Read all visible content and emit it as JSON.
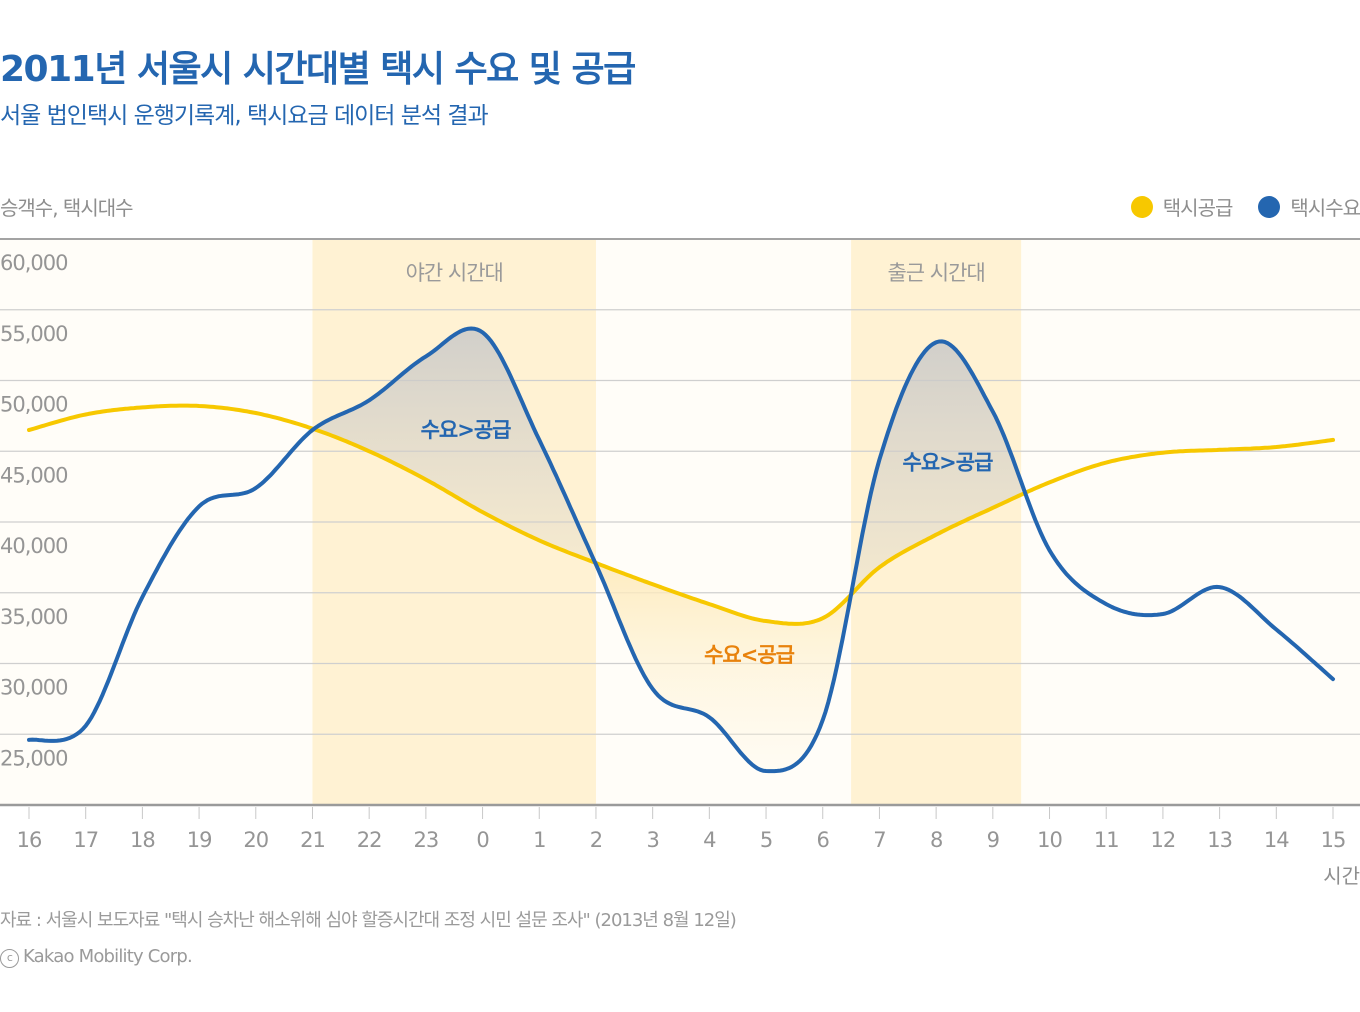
{
  "header": {
    "title": "2011년 서울시 시간대별 택시 수요 및 공급",
    "subtitle": "서울 법인택시 운행기록계, 택시요금 데이터 분석 결과"
  },
  "footer": {
    "source": "자료 : 서울시 보도자료 \"택시 승차난 해소위해 심야 할증시간대 조정 시민 설문 조사\" (2013년 8월 12일)",
    "copyright_symbol": "c",
    "copyright": "Kakao Mobility Corp."
  },
  "colors": {
    "title": "#2466b0",
    "supply": "#f7c800",
    "demand": "#2466b0",
    "highlight_band": "#fff2d3",
    "plot_bg": "#fffdf8",
    "annotation_demand_gt": "#2466b0",
    "annotation_demand_lt": "#e8820c"
  },
  "chart_data": {
    "type": "line",
    "title": "2011년 서울시 시간대별 택시 수요 및 공급",
    "subtitle": "서울 법인택시 운행기록계, 택시요금 데이터 분석 결과",
    "ylabel": "승객수, 택시대수",
    "xlabel": "시간",
    "ylim": [
      20000,
      60000
    ],
    "yticks": [
      60000,
      55000,
      50000,
      45000,
      40000,
      35000,
      30000,
      25000
    ],
    "ytick_labels": [
      "60,000",
      "55,000",
      "50,000",
      "45,000",
      "40,000",
      "35,000",
      "30,000",
      "25,000"
    ],
    "categories": [
      "16",
      "17",
      "18",
      "19",
      "20",
      "21",
      "22",
      "23",
      "0",
      "1",
      "2",
      "3",
      "4",
      "5",
      "6",
      "7",
      "8",
      "9",
      "10",
      "11",
      "12",
      "13",
      "14",
      "15"
    ],
    "grid": true,
    "legend_position": "top-right",
    "series": [
      {
        "name": "택시공급",
        "color": "#f7c800",
        "values": [
          46500,
          47600,
          48100,
          48200,
          47700,
          46600,
          45000,
          43000,
          40700,
          38700,
          37100,
          35600,
          34200,
          33000,
          33200,
          36800,
          39100,
          41000,
          42800,
          44200,
          44900,
          45100,
          45300,
          45800
        ]
      },
      {
        "name": "택시수요",
        "color": "#2466b0",
        "values": [
          24600,
          25600,
          34700,
          41100,
          42400,
          46500,
          48600,
          51700,
          53400,
          45800,
          37000,
          28200,
          26200,
          22400,
          26000,
          44400,
          52700,
          47800,
          38000,
          34200,
          33500,
          35400,
          32400,
          28900
        ]
      }
    ],
    "bands": [
      {
        "label": "야간 시간대",
        "from_hour_index": 5,
        "to_hour_index": 10
      },
      {
        "label": "출근 시간대",
        "from_hour_index": 14.5,
        "to_hour_index": 17.5
      }
    ],
    "annotations": [
      {
        "text": "수요>공급",
        "at_hour_index": 7.7,
        "value": 46000,
        "kind": "demand_gt"
      },
      {
        "text": "수요>공급",
        "at_hour_index": 16.2,
        "value": 43700,
        "kind": "demand_gt"
      },
      {
        "text": "수요<공급",
        "at_hour_index": 12.7,
        "value": 30100,
        "kind": "demand_lt"
      }
    ]
  }
}
